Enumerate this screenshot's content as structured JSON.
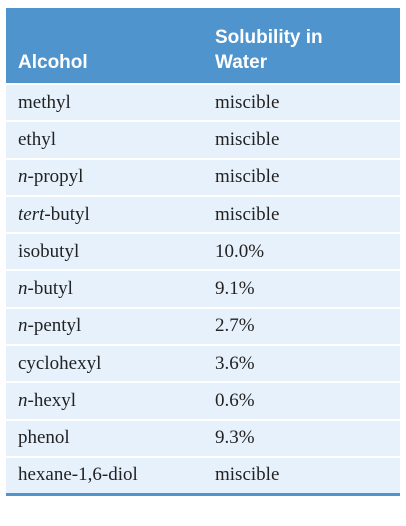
{
  "table": {
    "headers": {
      "alcohol": "Alcohol",
      "solubility_line1": "Solubility in",
      "solubility_line2": "Water"
    },
    "rows": [
      {
        "prefix": "",
        "name": "methyl",
        "solubility": "miscible"
      },
      {
        "prefix": "",
        "name": "ethyl",
        "solubility": "miscible"
      },
      {
        "prefix": "n",
        "name": "-propyl",
        "solubility": "miscible"
      },
      {
        "prefix": "tert",
        "name": "-butyl",
        "solubility": "miscible"
      },
      {
        "prefix": "",
        "name": "isobutyl",
        "solubility": "10.0%"
      },
      {
        "prefix": "n",
        "name": "-butyl",
        "solubility": "9.1%"
      },
      {
        "prefix": "n",
        "name": "-pentyl",
        "solubility": "2.7%"
      },
      {
        "prefix": "",
        "name": "cyclohexyl",
        "solubility": "3.6%"
      },
      {
        "prefix": "n",
        "name": "-hexyl",
        "solubility": "0.6%"
      },
      {
        "prefix": "",
        "name": "phenol",
        "solubility": "9.3%"
      },
      {
        "prefix": "",
        "name": "hexane-1,6-diol",
        "solubility": "miscible"
      }
    ]
  }
}
